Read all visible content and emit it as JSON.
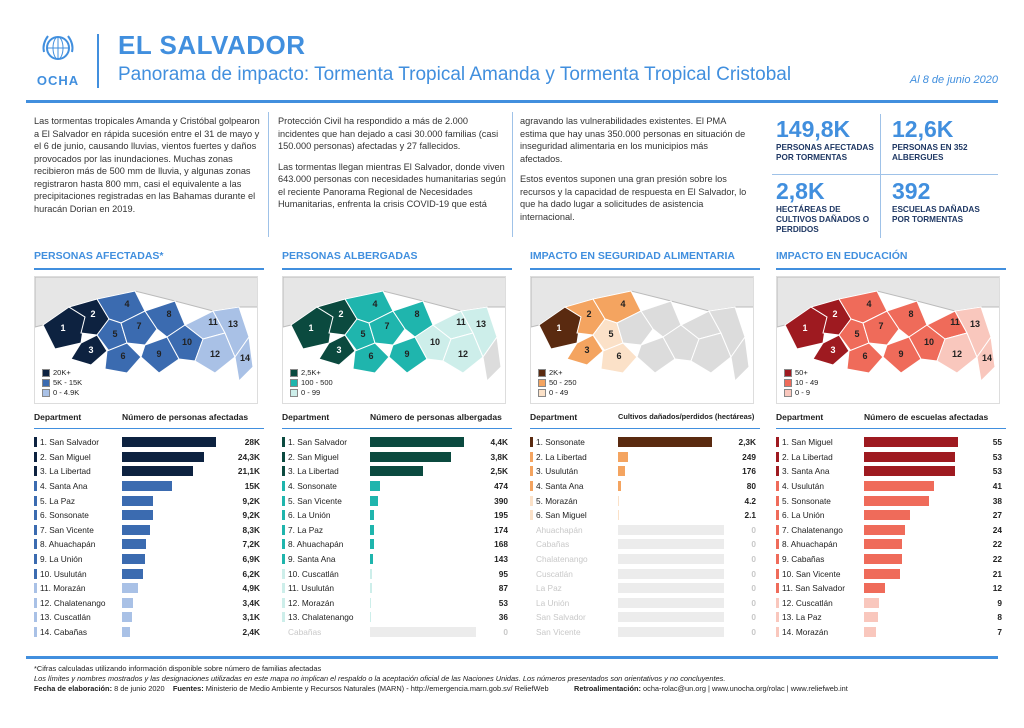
{
  "header": {
    "logo_text": "OCHA",
    "title": "EL SALVADOR",
    "subtitle": "Panorama de impacto: Tormenta Tropical Amanda y Tormenta Tropical Cristobal",
    "date": "Al 8 de junio 2020"
  },
  "intro": {
    "col1": "Las tormentas tropicales Amanda y Cristóbal golpearon a El Salvador en rápida sucesión entre el 31 de mayo y el 6 de junio, causando lluvias, vientos fuertes y daños provocados por las inundaciones. Muchas zonas recibieron más de 500 mm de lluvia, y algunas zonas registraron hasta 800 mm, casi el equivalente a las precipitaciones registradas en las Bahamas durante el huracán Dorian en 2019.",
    "col2a": "Protección Civil ha respondido a más de 2.000 incidentes que han dejado a casi 30.000 familias (casi 150.000 personas) afectadas y 27 fallecidos.",
    "col2b": "Las tormentas llegan mientras El Salvador, donde viven 643.000 personas con necesidades humanitarias según el reciente Panorama Regional de Necesidades Humanitarias, enfrenta la crisis COVID-19 que está",
    "col3a": "agravando las vulnerabilidades existentes. El PMA estima que hay unas 350.000 personas en situación de inseguridad alimentaria en los municipios más afectados.",
    "col3b": "Estos eventos suponen una gran presión sobre los recursos y la capacidad de respuesta en El Salvador, lo que ha dado lugar a solicitudes de asistencia internacional."
  },
  "kpis": [
    {
      "value": "149,8K",
      "label": "PERSONAS AFECTADAS POR TORMENTAS"
    },
    {
      "value": "12,6K",
      "label": "PERSONAS EN 352 ALBERGUES"
    },
    {
      "value": "2,8K",
      "label": "HECTÁREAS DE CULTIVOS DAÑADOS O PERDIDOS"
    },
    {
      "value": "392",
      "label": "ESCUELAS DAÑADAS POR TORMENTAS"
    }
  ],
  "colors": {
    "accent": "#418fde",
    "navy": "#1f3864",
    "p1": [
      "#0d2240",
      "#3b6bb0",
      "#a9c1e6"
    ],
    "p2": [
      "#0b4a3f",
      "#1fb5ad",
      "#cdeeea"
    ],
    "p3": [
      "#5a2a10",
      "#f4a460",
      "#fbe1c8"
    ],
    "p4": [
      "#9e1a20",
      "#ef6b5a",
      "#f9c7bd"
    ]
  },
  "panels": [
    {
      "title": "PERSONAS AFECTADAS*",
      "col1": "Department",
      "col2": "Número de personas afectadas",
      "legend": [
        "20K+",
        "5K - 15K",
        "0 - 4.9K"
      ],
      "map_labels": [
        "1",
        "2",
        "3",
        "4",
        "5",
        "6",
        "7",
        "8",
        "9",
        "10",
        "11",
        "12",
        "13",
        "14"
      ],
      "rows": [
        {
          "name": "1. San Salvador",
          "value": "28K",
          "n": 28000,
          "cls": 0
        },
        {
          "name": "2. San Miguel",
          "value": "24,3K",
          "n": 24300,
          "cls": 0
        },
        {
          "name": "3. La Libertad",
          "value": "21,1K",
          "n": 21100,
          "cls": 0
        },
        {
          "name": "4. Santa Ana",
          "value": "15K",
          "n": 15000,
          "cls": 1
        },
        {
          "name": "5. La Paz",
          "value": "9,2K",
          "n": 9200,
          "cls": 1
        },
        {
          "name": "6. Sonsonate",
          "value": "9,2K",
          "n": 9200,
          "cls": 1
        },
        {
          "name": "7. San Vicente",
          "value": "8,3K",
          "n": 8300,
          "cls": 1
        },
        {
          "name": "8. Ahuachapán",
          "value": "7,2K",
          "n": 7200,
          "cls": 1
        },
        {
          "name": "9. La Unión",
          "value": "6,9K",
          "n": 6900,
          "cls": 1
        },
        {
          "name": "10. Usulután",
          "value": "6,2K",
          "n": 6200,
          "cls": 1
        },
        {
          "name": "11. Morazán",
          "value": "4,9K",
          "n": 4900,
          "cls": 2
        },
        {
          "name": "12. Chalatenango",
          "value": "3,4K",
          "n": 3400,
          "cls": 2
        },
        {
          "name": "13. Cuscatlán",
          "value": "3,1K",
          "n": 3100,
          "cls": 2
        },
        {
          "name": "14. Cabañas",
          "value": "2,4K",
          "n": 2400,
          "cls": 2
        }
      ]
    },
    {
      "title": "PERSONAS ALBERGADAS",
      "col1": "Department",
      "col2": "Número de personas albergadas",
      "legend": [
        "2,5K+",
        "100 - 500",
        "0 - 99"
      ],
      "map_labels": [
        "1",
        "2",
        "3",
        "4",
        "5",
        "6",
        "7",
        "8",
        "9",
        "10",
        "11",
        "12",
        "13"
      ],
      "rows": [
        {
          "name": "1. San Salvador",
          "value": "4,4K",
          "n": 4400,
          "cls": 0
        },
        {
          "name": "2. San Miguel",
          "value": "3,8K",
          "n": 3800,
          "cls": 0
        },
        {
          "name": "3. La Libertad",
          "value": "2,5K",
          "n": 2500,
          "cls": 0
        },
        {
          "name": "4. Sonsonate",
          "value": "474",
          "n": 474,
          "cls": 1
        },
        {
          "name": "5. San Vicente",
          "value": "390",
          "n": 390,
          "cls": 1
        },
        {
          "name": "6. La Unión",
          "value": "195",
          "n": 195,
          "cls": 1
        },
        {
          "name": "7. La Paz",
          "value": "174",
          "n": 174,
          "cls": 1
        },
        {
          "name": "8. Ahuachapán",
          "value": "168",
          "n": 168,
          "cls": 1
        },
        {
          "name": "9. Santa Ana",
          "value": "143",
          "n": 143,
          "cls": 1
        },
        {
          "name": "10. Cuscatlán",
          "value": "95",
          "n": 95,
          "cls": 2
        },
        {
          "name": "11. Usulután",
          "value": "87",
          "n": 87,
          "cls": 2
        },
        {
          "name": "12. Morazán",
          "value": "53",
          "n": 53,
          "cls": 2
        },
        {
          "name": "13. Chalatenango",
          "value": "36",
          "n": 36,
          "cls": 2
        },
        {
          "name": "Cabañas",
          "value": "0",
          "n": 0,
          "cls": 3
        }
      ]
    },
    {
      "title": "IMPACTO EN SEGURIDAD ALIMENTARIA",
      "col1": "Department",
      "col2": "Cultivos dañados/perdidos (hectáreas)",
      "legend": [
        "2K+",
        "50 - 250",
        "0 - 49"
      ],
      "map_labels": [
        "1",
        "2",
        "3",
        "4",
        "5",
        "6"
      ],
      "rows": [
        {
          "name": "1. Sonsonate",
          "value": "2,3K",
          "n": 2300,
          "cls": 0
        },
        {
          "name": "2. La Libertad",
          "value": "249",
          "n": 249,
          "cls": 1
        },
        {
          "name": "3. Usulután",
          "value": "176",
          "n": 176,
          "cls": 1
        },
        {
          "name": "4. Santa Ana",
          "value": "80",
          "n": 80,
          "cls": 1
        },
        {
          "name": "5. Morazán",
          "value": "4.2",
          "n": 4.2,
          "cls": 2
        },
        {
          "name": "6. San Miguel",
          "value": "2.1",
          "n": 2.1,
          "cls": 2
        },
        {
          "name": "Ahuachapán",
          "value": "0",
          "n": 0,
          "cls": 3
        },
        {
          "name": "Cabañas",
          "value": "0",
          "n": 0,
          "cls": 3
        },
        {
          "name": "Chalatenango",
          "value": "0",
          "n": 0,
          "cls": 3
        },
        {
          "name": "Cuscatlán",
          "value": "0",
          "n": 0,
          "cls": 3
        },
        {
          "name": "La Paz",
          "value": "0",
          "n": 0,
          "cls": 3
        },
        {
          "name": "La Unión",
          "value": "0",
          "n": 0,
          "cls": 3
        },
        {
          "name": "San Salvador",
          "value": "0",
          "n": 0,
          "cls": 3
        },
        {
          "name": "San Vicente",
          "value": "0",
          "n": 0,
          "cls": 3
        }
      ]
    },
    {
      "title": "IMPACTO EN EDUCACIÓN",
      "col1": "Department",
      "col2": "Número de escuelas afectadas",
      "legend": [
        "50+",
        "10 - 49",
        "0 - 9"
      ],
      "map_labels": [
        "1",
        "2",
        "3",
        "4",
        "5",
        "6",
        "7",
        "8",
        "9",
        "10",
        "11",
        "12",
        "13",
        "14"
      ],
      "rows": [
        {
          "name": "1. San Miguel",
          "value": "55",
          "n": 55,
          "cls": 0
        },
        {
          "name": "2. La Libertad",
          "value": "53",
          "n": 53,
          "cls": 0
        },
        {
          "name": "3. Santa Ana",
          "value": "53",
          "n": 53,
          "cls": 0
        },
        {
          "name": "4. Usulután",
          "value": "41",
          "n": 41,
          "cls": 1
        },
        {
          "name": "5. Sonsonate",
          "value": "38",
          "n": 38,
          "cls": 1
        },
        {
          "name": "6. La Unión",
          "value": "27",
          "n": 27,
          "cls": 1
        },
        {
          "name": "7. Chalatenango",
          "value": "24",
          "n": 24,
          "cls": 1
        },
        {
          "name": "8. Ahuachapán",
          "value": "22",
          "n": 22,
          "cls": 1
        },
        {
          "name": "9. Cabañas",
          "value": "22",
          "n": 22,
          "cls": 1
        },
        {
          "name": "10. San Vicente",
          "value": "21",
          "n": 21,
          "cls": 1
        },
        {
          "name": "11. San Salvador",
          "value": "12",
          "n": 12,
          "cls": 1
        },
        {
          "name": "12. Cuscatlán",
          "value": "9",
          "n": 9,
          "cls": 2
        },
        {
          "name": "13. La Paz",
          "value": "8",
          "n": 8,
          "cls": 2
        },
        {
          "name": "14. Morazán",
          "value": "7",
          "n": 7,
          "cls": 2
        }
      ]
    }
  ],
  "footer": {
    "note": "*Cifras calculadas utilizando información disponible sobre número de familias afectadas",
    "disclaimer": "Los límites y nombres mostrados y las designaciones utilizadas en este mapa no implican el respaldo o la aceptación oficial de las Naciones Unidas. Los números presentados son orientativos y no concluyentes.",
    "elab_label": "Fecha de elaboración:",
    "elab_date": "8 de junio 2020",
    "sources_label": "Fuentes:",
    "sources": "Ministerio de Medio Ambiente y Recursos Naturales (MARN) - http://emergencia.marn.gob.sv/    ReliefWeb",
    "feedback_label": "Retroalimentación:",
    "feedback": "ocha-rolac@un.org  |  www.unocha.org/rolac  |  www.reliefweb.int"
  }
}
